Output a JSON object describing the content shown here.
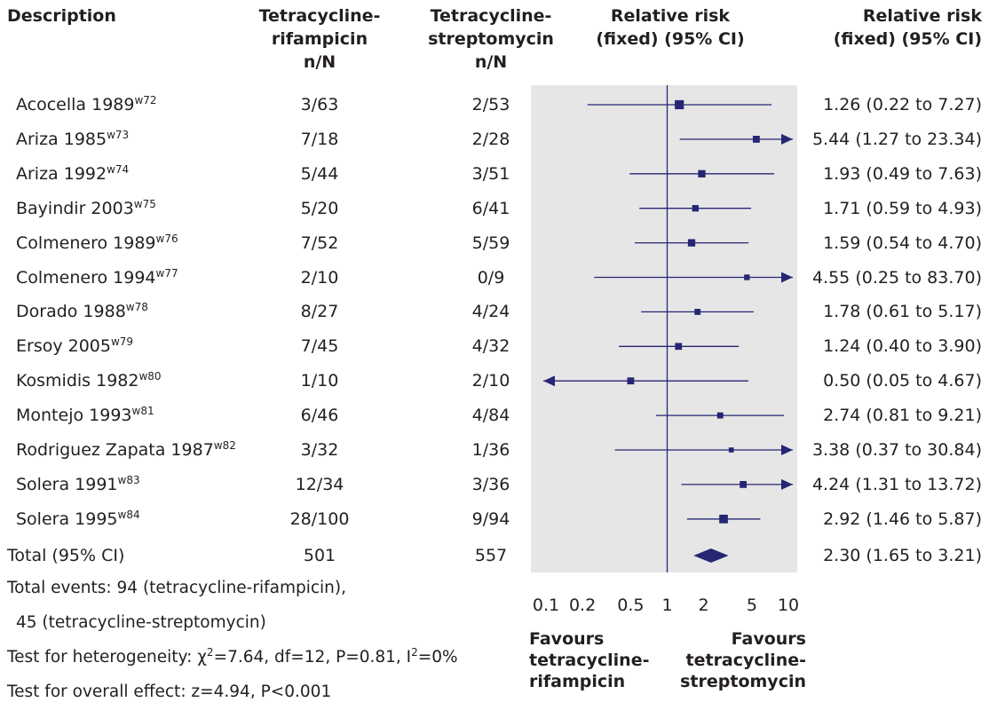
{
  "headers": {
    "description": "Description",
    "group1": [
      "Tetracycline-",
      "rifampicin",
      "n/N"
    ],
    "group2": [
      "Tetracycline-",
      "streptomycin",
      "n/N"
    ],
    "plot": [
      "Relative risk",
      "(fixed) (95% CI)"
    ],
    "estimate": [
      "Relative risk",
      "(fixed) (95% CI)"
    ]
  },
  "rows": [
    {
      "name": "Acocella 1989",
      "ref": "w72",
      "g1": "3/63",
      "g2": "2/53",
      "est": "1.26 (0.22 to 7.27)"
    },
    {
      "name": "Ariza 1985",
      "ref": "w73",
      "g1": "7/18",
      "g2": "2/28",
      "est": "5.44 (1.27 to 23.34)"
    },
    {
      "name": "Ariza 1992",
      "ref": "w74",
      "g1": "5/44",
      "g2": "3/51",
      "est": "1.93 (0.49 to 7.63)"
    },
    {
      "name": "Bayindir 2003",
      "ref": "w75",
      "g1": "5/20",
      "g2": "6/41",
      "est": "1.71 (0.59 to 4.93)"
    },
    {
      "name": "Colmenero 1989",
      "ref": "w76",
      "g1": "7/52",
      "g2": "5/59",
      "est": "1.59 (0.54 to 4.70)"
    },
    {
      "name": "Colmenero 1994",
      "ref": "w77",
      "g1": "2/10",
      "g2": "0/9",
      "est": "4.55 (0.25 to 83.70)"
    },
    {
      "name": "Dorado 1988",
      "ref": "w78",
      "g1": "8/27",
      "g2": "4/24",
      "est": "1.78 (0.61 to 5.17)"
    },
    {
      "name": "Ersoy 2005",
      "ref": "w79",
      "g1": "7/45",
      "g2": "4/32",
      "est": "1.24 (0.40 to 3.90)"
    },
    {
      "name": "Kosmidis 1982",
      "ref": "w80",
      "g1": "1/10",
      "g2": "2/10",
      "est": "0.50 (0.05 to 4.67)"
    },
    {
      "name": "Montejo 1993",
      "ref": "w81",
      "g1": "6/46",
      "g2": "4/84",
      "est": "2.74 (0.81 to 9.21)"
    },
    {
      "name": "Rodriguez Zapata 1987",
      "ref": "w82",
      "g1": "3/32",
      "g2": "1/36",
      "est": "3.38 (0.37 to 30.84)"
    },
    {
      "name": "Solera 1991",
      "ref": "w83",
      "g1": "12/34",
      "g2": "3/36",
      "est": "4.24 (1.31 to 13.72)"
    },
    {
      "name": "Solera 1995",
      "ref": "w84",
      "g1": "28/100",
      "g2": "9/94",
      "est": "2.92 (1.46 to 5.87)"
    }
  ],
  "total": {
    "name": "Total (95% CI)",
    "g1": "501",
    "g2": "557",
    "est": "2.30 (1.65 to 3.21)"
  },
  "footnotes": {
    "events_line1": "Total events: 94 (tetracycline-rifampicin),",
    "events_line2": "45 (tetracycline-streptomycin)",
    "heterogeneity_prefix": "Test for heterogeneity: ",
    "heterogeneity_chi": "χ",
    "heterogeneity_chi_sup": "2",
    "heterogeneity_mid": "=7.64, df=12, P=0.81, I",
    "heterogeneity_i_sup": "2",
    "heterogeneity_end": "=0%",
    "overall": "Test for overall effect: z=4.94, P<0.001"
  },
  "favours": {
    "left": [
      "Favours",
      "tetracycline-",
      "rifampicin"
    ],
    "right": [
      "Favours",
      "tetracycline-",
      "streptomycin"
    ]
  },
  "colors": {
    "marker": "#262675",
    "panel": "#e6e6e6",
    "text": "#231f20"
  },
  "chart_data": {
    "type": "forest",
    "x_scale": "log",
    "xlim": [
      0.1,
      10
    ],
    "x_ticks": [
      "0.1",
      "0.2",
      "0.5",
      "1",
      "2",
      "5",
      "10"
    ],
    "reference_line": 1,
    "studies": [
      {
        "rr": 1.26,
        "lo": 0.22,
        "hi": 7.27,
        "weight": 3
      },
      {
        "rr": 5.44,
        "lo": 1.27,
        "hi": 23.34,
        "weight": 2
      },
      {
        "rr": 1.93,
        "lo": 0.49,
        "hi": 7.63,
        "weight": 2.2
      },
      {
        "rr": 1.71,
        "lo": 0.59,
        "hi": 4.93,
        "weight": 1.8
      },
      {
        "rr": 1.59,
        "lo": 0.54,
        "hi": 4.7,
        "weight": 2.2
      },
      {
        "rr": 4.55,
        "lo": 0.25,
        "hi": 83.7,
        "weight": 1.4
      },
      {
        "rr": 1.78,
        "lo": 0.61,
        "hi": 5.17,
        "weight": 1.6
      },
      {
        "rr": 1.24,
        "lo": 0.4,
        "hi": 3.9,
        "weight": 2
      },
      {
        "rr": 0.5,
        "lo": 0.05,
        "hi": 4.67,
        "weight": 2
      },
      {
        "rr": 2.74,
        "lo": 0.81,
        "hi": 9.21,
        "weight": 1.6
      },
      {
        "rr": 3.38,
        "lo": 0.37,
        "hi": 30.84,
        "weight": 1.1
      },
      {
        "rr": 4.24,
        "lo": 1.31,
        "hi": 13.72,
        "weight": 2
      },
      {
        "rr": 2.92,
        "lo": 1.46,
        "hi": 5.87,
        "weight": 2.8
      }
    ],
    "total": {
      "rr": 2.3,
      "lo": 1.65,
      "hi": 3.21
    }
  }
}
